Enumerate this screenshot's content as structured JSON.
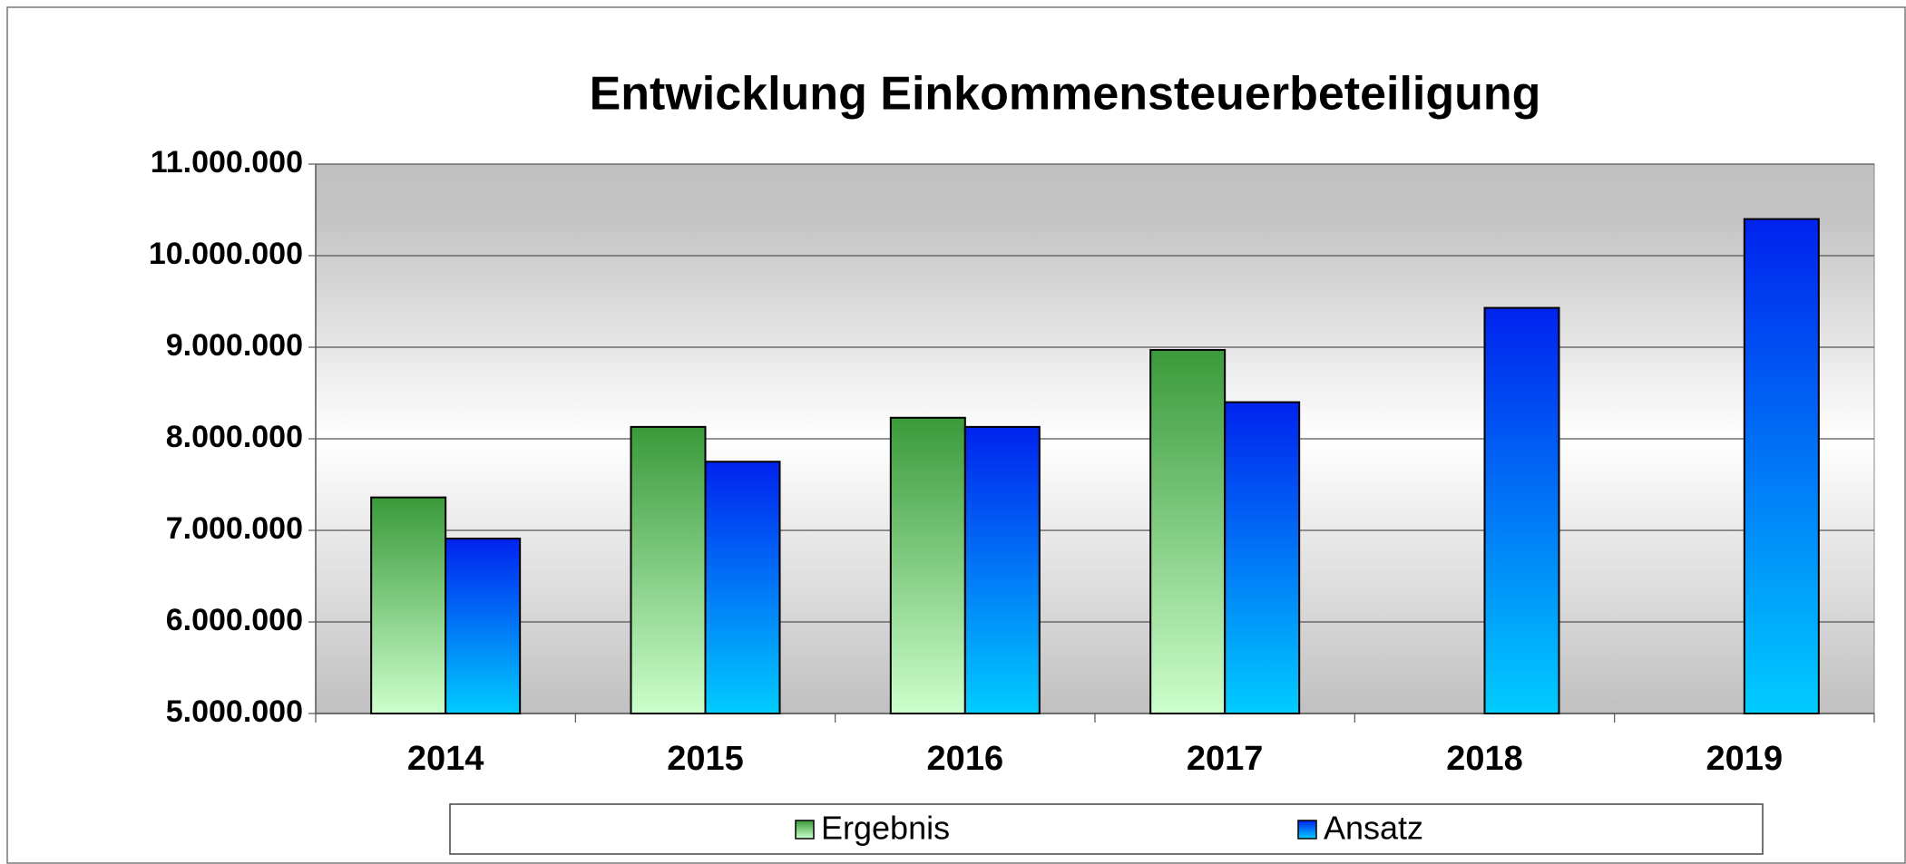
{
  "chart_data": {
    "type": "bar",
    "title": "Entwicklung Einkommensteuerbeteiligung",
    "categories": [
      "2014",
      "2015",
      "2016",
      "2017",
      "2018",
      "2019"
    ],
    "series": [
      {
        "name": "Ergebnis",
        "color": "#3a9a3a",
        "gradient": [
          "#3a9a3a",
          "#ccffcc"
        ],
        "values": [
          7360000,
          8130000,
          8230000,
          8970000,
          null,
          null
        ]
      },
      {
        "name": "Ansatz",
        "color": "#0022ee",
        "gradient": [
          "#0022ee",
          "#00ccff"
        ],
        "values": [
          6910000,
          7750000,
          8130000,
          8400000,
          9430000,
          10400000
        ]
      }
    ],
    "ylim": [
      5000000,
      11000000
    ],
    "yticks": [
      {
        "value": 5000000,
        "label": "5.000.000"
      },
      {
        "value": 6000000,
        "label": "6.000.000"
      },
      {
        "value": 7000000,
        "label": "7.000.000"
      },
      {
        "value": 8000000,
        "label": "8.000.000"
      },
      {
        "value": 9000000,
        "label": "9.000.000"
      },
      {
        "value": 10000000,
        "label": "10.000.000"
      },
      {
        "value": 11000000,
        "label": "11.000.000"
      }
    ],
    "grid": true,
    "legend": "bottom"
  }
}
